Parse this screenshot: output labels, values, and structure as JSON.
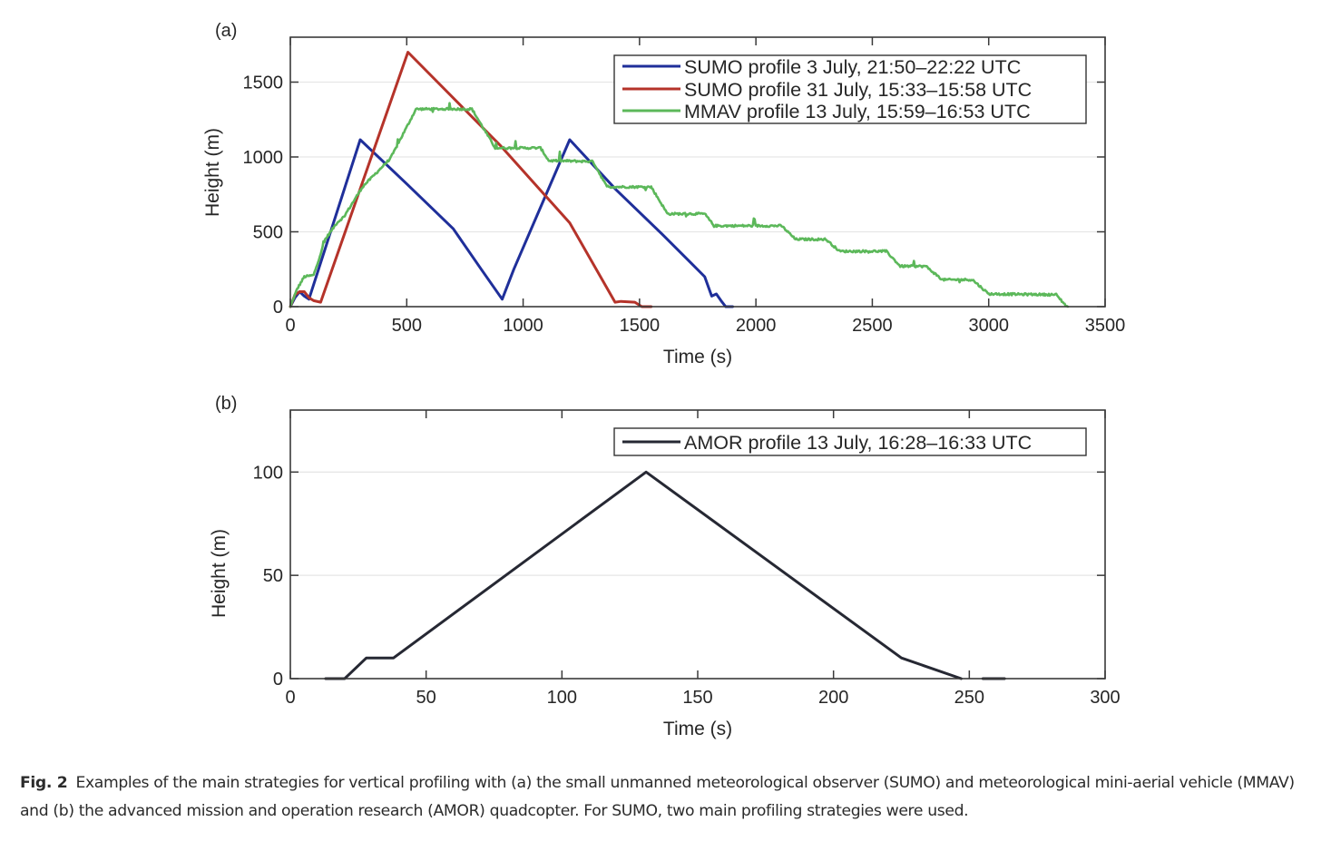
{
  "figure": {
    "caption_label": "Fig. 2",
    "caption_text": "Examples of the main strategies for vertical profiling with (a) the small unmanned meteorological observer (SUMO) and meteorological mini-aerial vehicle (MMAV) and (b) the advanced mission and operation research (AMOR) quadcopter. For SUMO, two main profiling strategies were used."
  },
  "chart_data": [
    {
      "panel_label": "(a)",
      "type": "line",
      "title": "",
      "xlabel": "Time (s)",
      "ylabel": "Height (m)",
      "xlim": [
        0,
        3500
      ],
      "ylim": [
        0,
        1800
      ],
      "xticks": [
        0,
        500,
        1000,
        1500,
        2000,
        2500,
        3000,
        3500
      ],
      "yticks": [
        0,
        500,
        1000,
        1500
      ],
      "grid": "horizontal",
      "legend_position": "top-right",
      "series": [
        {
          "name": "SUMO profile 3 July, 21:50–22:22 UTC",
          "color": "#1f2f9a",
          "noise": 0,
          "x": [
            0,
            20,
            40,
            60,
            80,
            300,
            500,
            700,
            820,
            910,
            960,
            1200,
            1400,
            1600,
            1780,
            1810,
            1830,
            1850,
            1870,
            1900
          ],
          "y": [
            0,
            60,
            100,
            70,
            50,
            1115,
            820,
            520,
            250,
            50,
            250,
            1115,
            780,
            480,
            200,
            70,
            85,
            40,
            0,
            0
          ]
        },
        {
          "name": "SUMO profile 31 July, 15:33–15:58 UTC",
          "color": "#b5332a",
          "noise": 0,
          "x": [
            0,
            20,
            40,
            60,
            80,
            100,
            130,
            505,
            900,
            1200,
            1395,
            1420,
            1480,
            1510,
            1550
          ],
          "y": [
            0,
            80,
            100,
            100,
            60,
            40,
            30,
            1700,
            1080,
            560,
            30,
            35,
            30,
            0,
            0
          ]
        },
        {
          "name": "MMAV profile 13 July, 15:59–16:53 UTC",
          "color": "#5cb85a",
          "noise": 14,
          "x": [
            0,
            30,
            60,
            100,
            150,
            200,
            230,
            310,
            430,
            540,
            780,
            880,
            1075,
            1110,
            1300,
            1360,
            1550,
            1620,
            1780,
            1820,
            2110,
            2170,
            2300,
            2360,
            2560,
            2620,
            2730,
            2800,
            2930,
            3000,
            3290,
            3330,
            3340
          ],
          "y": [
            0,
            120,
            200,
            210,
            450,
            560,
            600,
            800,
            990,
            1320,
            1320,
            1060,
            1060,
            975,
            970,
            800,
            800,
            620,
            620,
            540,
            540,
            450,
            450,
            370,
            370,
            270,
            270,
            180,
            180,
            85,
            80,
            10,
            0
          ]
        }
      ]
    },
    {
      "panel_label": "(b)",
      "type": "line",
      "title": "",
      "xlabel": "Time (s)",
      "ylabel": "Height (m)",
      "xlim": [
        0,
        300
      ],
      "ylim": [
        0,
        130
      ],
      "xticks": [
        0,
        50,
        100,
        150,
        200,
        250,
        300
      ],
      "yticks": [
        0,
        50,
        100
      ],
      "grid": "horizontal",
      "legend_position": "top-right",
      "series": [
        {
          "name": "AMOR profile 13 July, 16:28–16:33 UTC",
          "color": "#262833",
          "noise": 0,
          "x": [
            13,
            20,
            28,
            38,
            131,
            225,
            247
          ],
          "y": [
            0,
            0,
            10,
            10,
            100,
            10,
            0
          ]
        },
        {
          "name": "",
          "color": "#262833",
          "noise": 0,
          "x": [
            255,
            263
          ],
          "y": [
            0,
            0
          ]
        }
      ]
    }
  ]
}
